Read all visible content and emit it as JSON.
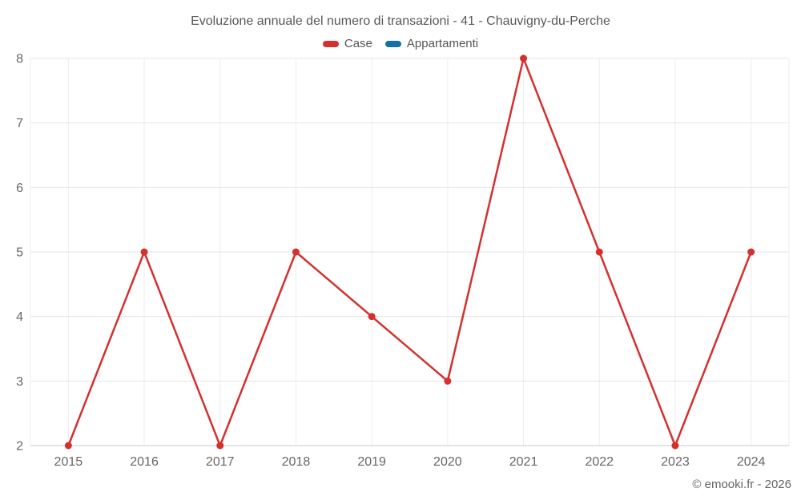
{
  "chart_data": {
    "type": "line",
    "title": "Evoluzione annuale del numero di transazioni - 41 - Chauvigny-du-Perche",
    "categories": [
      "2015",
      "2016",
      "2017",
      "2018",
      "2019",
      "2020",
      "2021",
      "2022",
      "2023",
      "2024"
    ],
    "series": [
      {
        "name": "Case",
        "color": "#d5302e",
        "values": [
          2,
          5,
          2,
          5,
          4,
          3,
          8,
          5,
          2,
          5
        ]
      },
      {
        "name": "Appartamenti",
        "color": "#1272a5",
        "values": []
      }
    ],
    "xlabel": "",
    "ylabel": "",
    "ylim": [
      2,
      8
    ],
    "yticks": [
      2,
      3,
      4,
      5,
      6,
      7,
      8
    ],
    "grid": true,
    "legend_position": "top"
  },
  "watermark": "© emooki.fr - 2026",
  "colors": {
    "grid_horizontal": "#e6e6e6",
    "grid_vertical": "#ededed",
    "axis_line": "#c9c9c9",
    "tick_text": "#666666",
    "title_text": "#595959"
  }
}
